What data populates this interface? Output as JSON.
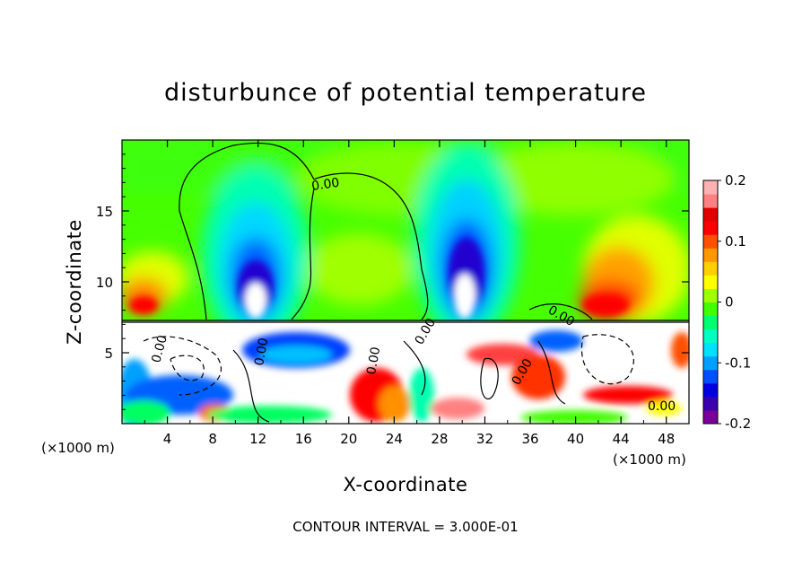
{
  "chart_data": {
    "type": "heatmap",
    "title": "disturbunce of potential temperature",
    "xlabel": "X-coordinate",
    "ylabel": "Z-coordinate",
    "x_unit": "(×1000 m)",
    "x_unit_right": "(×1000 m)",
    "xlim": [
      0,
      50
    ],
    "ylim": [
      0,
      20
    ],
    "x_ticks": [
      4,
      8,
      12,
      16,
      20,
      24,
      28,
      32,
      36,
      40,
      44,
      48
    ],
    "y_ticks": [
      5,
      10,
      15
    ],
    "colorbar": {
      "ticks": [
        "0.2",
        "0.1",
        "0",
        "-0.1",
        "-0.2"
      ],
      "range": [
        -0.2,
        0.2
      ],
      "colors": [
        "#7a0099",
        "#3a00b0",
        "#0000e0",
        "#0050ff",
        "#00a0ff",
        "#00e0ff",
        "#00ffc0",
        "#00ff70",
        "#40ff00",
        "#a0ff00",
        "#ffff00",
        "#ffd000",
        "#ff9800",
        "#ff5000",
        "#ff0000",
        "#e00000",
        "#ff8080",
        "#ffb0b0"
      ]
    },
    "contour_labels": [
      "0.00",
      "0.00",
      "0.00",
      "0.00",
      "0.00",
      "0.00",
      "0.00",
      "0.00"
    ],
    "contour_interval": "CONTOUR INTERVAL = 3.000E-01"
  }
}
